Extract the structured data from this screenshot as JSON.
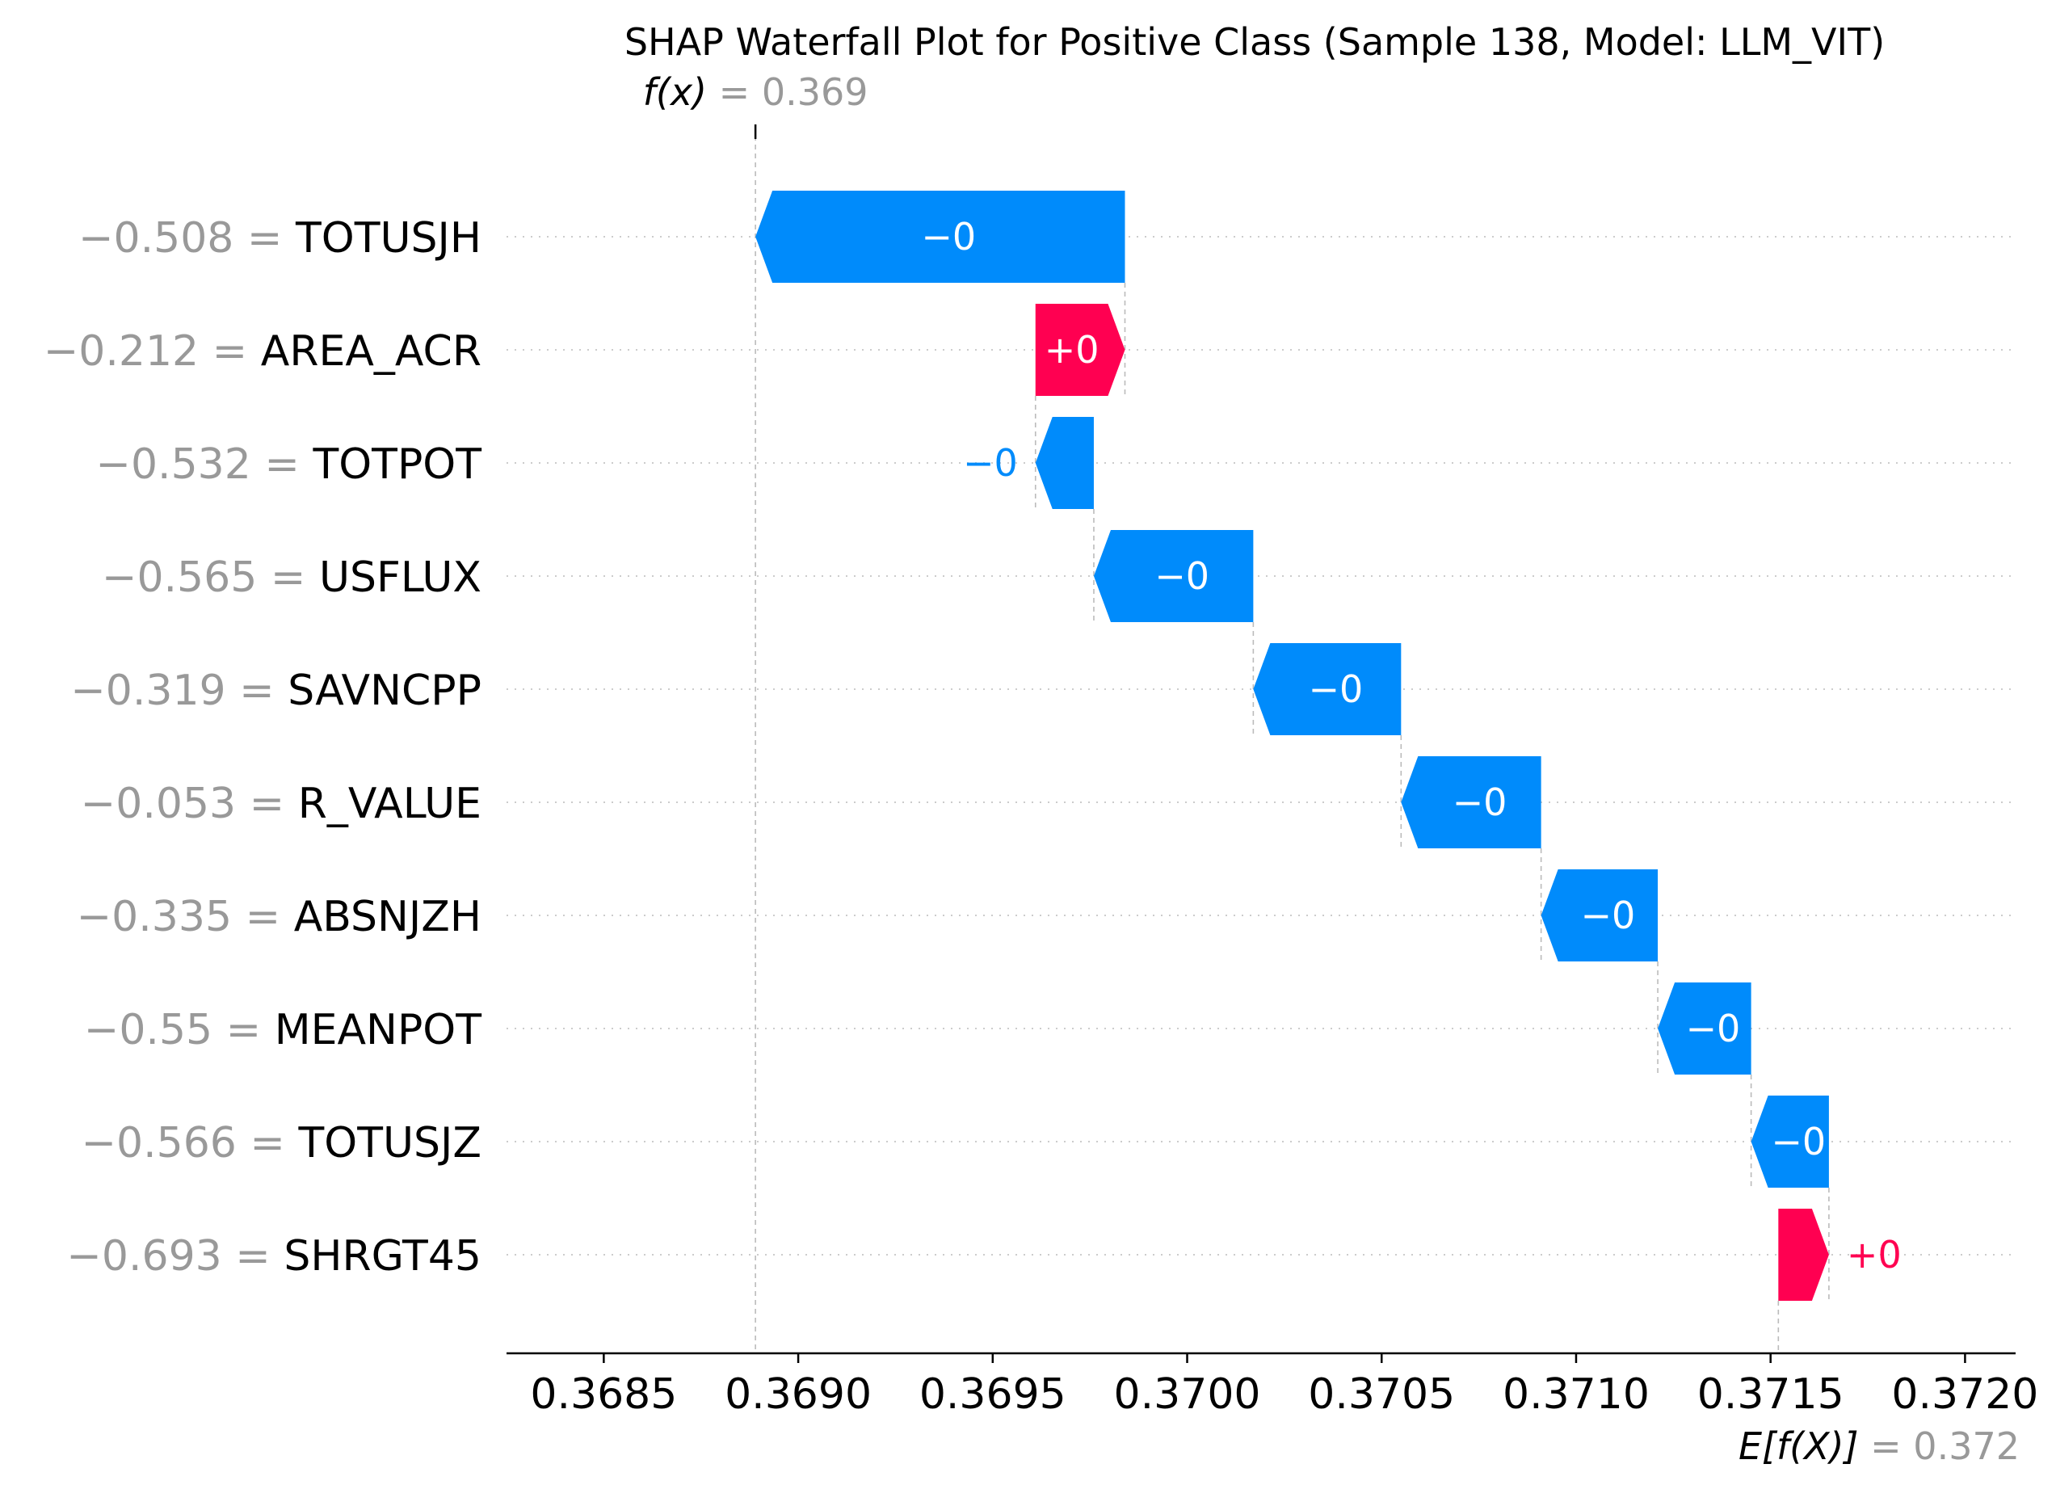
{
  "chart_data": {
    "type": "waterfall",
    "title": "SHAP Waterfall Plot for Positive Class (Sample 138, Model: LLM_VIT)",
    "fx": {
      "label": "f(x)",
      "value_text": "= 0.369",
      "value": 0.36889
    },
    "efx": {
      "label": "E[f(X)]",
      "value_text": "= 0.372",
      "value": 0.37152
    },
    "xlim": [
      0.36825,
      0.37213
    ],
    "ticks": [
      {
        "value": 0.3685,
        "label": "0.3685"
      },
      {
        "value": 0.369,
        "label": "0.3690"
      },
      {
        "value": 0.3695,
        "label": "0.3695"
      },
      {
        "value": 0.37,
        "label": "0.3700"
      },
      {
        "value": 0.3705,
        "label": "0.3705"
      },
      {
        "value": 0.371,
        "label": "0.3710"
      },
      {
        "value": 0.3715,
        "label": "0.3715"
      },
      {
        "value": 0.372,
        "label": "0.3720"
      }
    ],
    "colors": {
      "positive": "#ff0051",
      "negative": "#008bfb",
      "muted": "#999999",
      "guide": "#bbbbbb"
    },
    "features": [
      {
        "name": "TOTUSJH",
        "feature_value": "−0.508",
        "start": 0.36984,
        "end": 0.36889,
        "label": "−0"
      },
      {
        "name": "AREA_ACR",
        "feature_value": "−0.212",
        "start": 0.36961,
        "end": 0.36984,
        "label": "+0"
      },
      {
        "name": "TOTPOT",
        "feature_value": "−0.532",
        "start": 0.36976,
        "end": 0.36961,
        "label": "−0"
      },
      {
        "name": "USFLUX",
        "feature_value": "−0.565",
        "start": 0.37017,
        "end": 0.36976,
        "label": "−0"
      },
      {
        "name": "SAVNCPP",
        "feature_value": "−0.319",
        "start": 0.37055,
        "end": 0.37017,
        "label": "−0"
      },
      {
        "name": "R_VALUE",
        "feature_value": "−0.053",
        "start": 0.37091,
        "end": 0.37055,
        "label": "−0"
      },
      {
        "name": "ABSNJZH",
        "feature_value": "−0.335",
        "start": 0.37121,
        "end": 0.37091,
        "label": "−0"
      },
      {
        "name": "MEANPOT",
        "feature_value": "−0.55",
        "start": 0.37145,
        "end": 0.37121,
        "label": "−0"
      },
      {
        "name": "TOTUSJZ",
        "feature_value": "−0.566",
        "start": 0.37165,
        "end": 0.37145,
        "label": "−0"
      },
      {
        "name": "SHRGT45",
        "feature_value": "−0.693",
        "start": 0.37152,
        "end": 0.37165,
        "label": "+0"
      }
    ]
  }
}
